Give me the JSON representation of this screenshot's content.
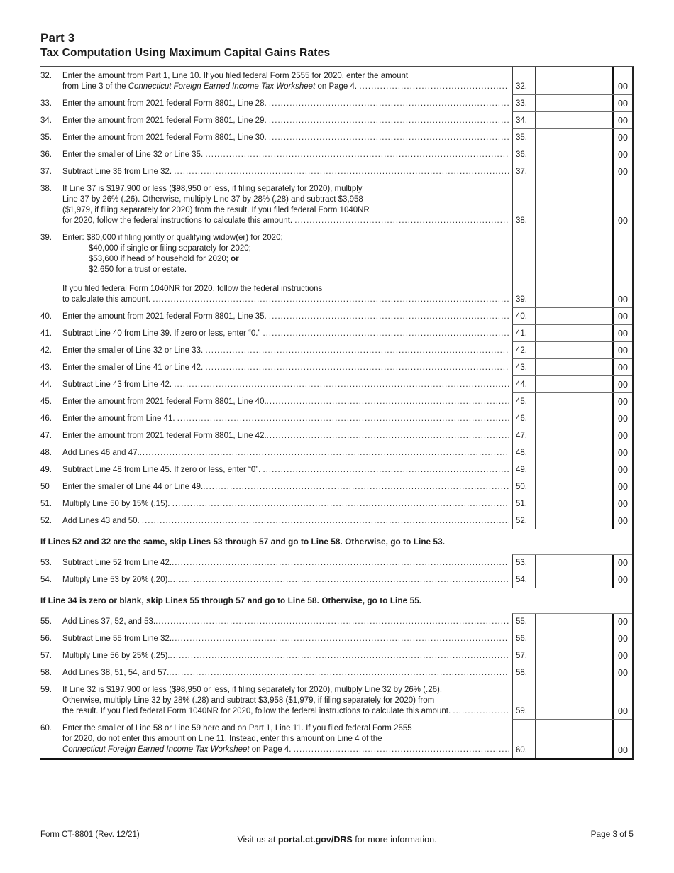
{
  "header": {
    "part_label": "Part 3",
    "title": "Tax Computation Using Maximum Capital Gains Rates"
  },
  "amount_cents_label": "00",
  "body": [
    {
      "kind": "row",
      "num": "32.",
      "box": "32.",
      "lines": [
        {
          "seg": [
            {
              "t": "Enter the amount from Part 1, Line 10. If you filed federal Form 2555 for 2020, enter the amount"
            }
          ]
        },
        {
          "seg": [
            {
              "t": "from Line 3 of the "
            },
            {
              "t": "Connecticut Foreign Earned Income Tax Worksheet",
              "i": true
            },
            {
              "t": " on Page 4. "
            }
          ],
          "dots": true
        }
      ]
    },
    {
      "kind": "row",
      "num": "33.",
      "box": "33.",
      "lines": [
        {
          "seg": [
            {
              "t": "Enter the amount from 2021 federal Form 8801, Line 28. "
            }
          ],
          "dots": true
        }
      ]
    },
    {
      "kind": "row",
      "num": "34.",
      "box": "34.",
      "lines": [
        {
          "seg": [
            {
              "t": "Enter the amount from 2021 federal Form 8801, Line 29. "
            }
          ],
          "dots": true
        }
      ]
    },
    {
      "kind": "row",
      "num": "35.",
      "box": "35.",
      "lines": [
        {
          "seg": [
            {
              "t": "Enter the amount from 2021 federal Form 8801, Line 30. "
            }
          ],
          "dots": true
        }
      ]
    },
    {
      "kind": "row",
      "num": "36.",
      "box": "36.",
      "lines": [
        {
          "seg": [
            {
              "t": "Enter the smaller of Line 32 or Line 35. "
            }
          ],
          "dots": true
        }
      ]
    },
    {
      "kind": "row",
      "num": "37.",
      "box": "37.",
      "lines": [
        {
          "seg": [
            {
              "t": "Subtract Line 36 from Line 32. "
            }
          ],
          "dots": true
        }
      ]
    },
    {
      "kind": "row",
      "num": "38.",
      "box": "38.",
      "lines": [
        {
          "seg": [
            {
              "t": "If Line 37 is $197,900 or less ($98,950 or less, if filing separately for 2020), multiply"
            }
          ]
        },
        {
          "seg": [
            {
              "t": "Line 37 by 26% (.26). Otherwise, multiply Line 37 by 28% (.28) and subtract $3,958"
            }
          ]
        },
        {
          "seg": [
            {
              "t": "($1,979, if filing separately for 2020) from the result. If you filed federal Form 1040NR"
            }
          ]
        },
        {
          "seg": [
            {
              "t": "for 2020, follow the federal instructions to calculate this amount. "
            }
          ],
          "dots": true
        }
      ]
    },
    {
      "kind": "row",
      "num": "39.",
      "box": "39.",
      "lines": [
        {
          "seg": [
            {
              "t": "Enter: $80,000 if filing jointly or qualifying widow(er) for 2020;"
            }
          ]
        },
        {
          "seg": [
            {
              "t": "$40,000 if single or filing separately for 2020;"
            }
          ],
          "ind": 1
        },
        {
          "seg": [
            {
              "t": "$53,600 if head of household for 2020; "
            },
            {
              "t": "or",
              "b": true
            }
          ],
          "ind": 1
        },
        {
          "seg": [
            {
              "t": "$2,650 for a trust or estate."
            }
          ],
          "ind": 1
        },
        {
          "gap": true
        },
        {
          "seg": [
            {
              "t": "If you filed federal Form 1040NR for 2020, follow the federal instructions"
            }
          ]
        },
        {
          "seg": [
            {
              "t": "to calculate this amount. "
            }
          ],
          "dots": true
        }
      ]
    },
    {
      "kind": "row",
      "num": "40.",
      "box": "40.",
      "lines": [
        {
          "seg": [
            {
              "t": "Enter the amount from 2021 federal Form 8801, Line 35. "
            }
          ],
          "dots": true
        }
      ]
    },
    {
      "kind": "row",
      "num": "41.",
      "box": "41.",
      "lines": [
        {
          "seg": [
            {
              "t": "Subtract Line 40 from Line 39. If zero or less, enter “0.” "
            }
          ],
          "dots": true
        }
      ]
    },
    {
      "kind": "row",
      "num": "42.",
      "box": "42.",
      "lines": [
        {
          "seg": [
            {
              "t": "Enter the smaller of Line 32 or Line 33. "
            }
          ],
          "dots": true
        }
      ]
    },
    {
      "kind": "row",
      "num": "43.",
      "box": "43.",
      "lines": [
        {
          "seg": [
            {
              "t": "Enter the smaller of Line 41 or Line 42. "
            }
          ],
          "dots": true
        }
      ]
    },
    {
      "kind": "row",
      "num": "44.",
      "box": "44.",
      "lines": [
        {
          "seg": [
            {
              "t": "Subtract Line 43 from Line 42. "
            }
          ],
          "dots": true
        }
      ]
    },
    {
      "kind": "row",
      "num": "45.",
      "box": "45.",
      "lines": [
        {
          "seg": [
            {
              "t": "Enter the amount from 2021 federal Form 8801, Line 40."
            }
          ],
          "dots": true
        }
      ]
    },
    {
      "kind": "row",
      "num": "46.",
      "box": "46.",
      "lines": [
        {
          "seg": [
            {
              "t": "Enter the amount from Line 41. "
            }
          ],
          "dots": true
        }
      ]
    },
    {
      "kind": "row",
      "num": "47.",
      "box": "47.",
      "lines": [
        {
          "seg": [
            {
              "t": "Enter the amount from 2021 federal Form 8801, Line 42."
            }
          ],
          "dots": true
        }
      ]
    },
    {
      "kind": "row",
      "num": "48.",
      "box": "48.",
      "lines": [
        {
          "seg": [
            {
              "t": "Add Lines 46 and 47."
            }
          ],
          "dots": true
        }
      ]
    },
    {
      "kind": "row",
      "num": "49.",
      "box": "49.",
      "lines": [
        {
          "seg": [
            {
              "t": "Subtract Line 48 from Line 45. If zero or less, enter “0”. "
            }
          ],
          "dots": true
        }
      ]
    },
    {
      "kind": "row",
      "num": "50",
      "box": "50.",
      "lines": [
        {
          "seg": [
            {
              "t": "Enter the smaller of Line 44 or Line 49."
            }
          ],
          "dots": true
        }
      ]
    },
    {
      "kind": "row",
      "num": "51.",
      "box": "51.",
      "lines": [
        {
          "seg": [
            {
              "t": "Multiply Line 50 by 15% (.15). "
            }
          ],
          "dots": true
        }
      ]
    },
    {
      "kind": "row",
      "num": "52.",
      "box": "52.",
      "lines": [
        {
          "seg": [
            {
              "t": "Add Lines 43 and 50. "
            }
          ],
          "dots": true
        }
      ]
    },
    {
      "kind": "note",
      "text": "If Lines 52 and 32 are the same, skip Lines 53 through 57 and go to Line 58.  Otherwise, go to Line 53."
    },
    {
      "kind": "row",
      "num": "53.",
      "box": "53.",
      "boxTop": true,
      "lines": [
        {
          "seg": [
            {
              "t": "Subtract Line 52 from Line 42."
            }
          ],
          "dots": true
        }
      ]
    },
    {
      "kind": "row",
      "num": "54.",
      "box": "54.",
      "lines": [
        {
          "seg": [
            {
              "t": "Multiply Line 53 by 20% (.20)."
            }
          ],
          "dots": true
        }
      ]
    },
    {
      "kind": "note",
      "text": "If Line 34 is zero or blank, skip Lines 55 through 57 and go to Line 58.  Otherwise, go to Line 55."
    },
    {
      "kind": "row",
      "num": "55.",
      "box": "55.",
      "boxTop": true,
      "lines": [
        {
          "seg": [
            {
              "t": "Add Lines 37, 52, and 53."
            }
          ],
          "dots": true
        }
      ]
    },
    {
      "kind": "row",
      "num": "56.",
      "box": "56.",
      "lines": [
        {
          "seg": [
            {
              "t": "Subtract Line 55 from Line 32."
            }
          ],
          "dots": true
        }
      ]
    },
    {
      "kind": "row",
      "num": "57.",
      "box": "57.",
      "lines": [
        {
          "seg": [
            {
              "t": "Multiply Line 56 by 25% (.25)."
            }
          ],
          "dots": true
        }
      ]
    },
    {
      "kind": "row",
      "num": "58.",
      "box": "58.",
      "lines": [
        {
          "seg": [
            {
              "t": "Add Lines 38, 51, 54, and 57."
            }
          ],
          "dots": true
        }
      ]
    },
    {
      "kind": "row",
      "num": "59.",
      "box": "59.",
      "lines": [
        {
          "seg": [
            {
              "t": "If Line 32 is $197,900 or less ($98,950 or less, if filing separately for 2020), multiply Line 32 by 26% (.26)."
            }
          ]
        },
        {
          "seg": [
            {
              "t": "Otherwise, multiply Line 32 by 28% (.28) and subtract $3,958 ($1,979, if filing separately for 2020) from"
            }
          ]
        },
        {
          "seg": [
            {
              "t": "the result. If you filed federal Form 1040NR for 2020, follow the federal instructions to calculate this amount. "
            }
          ],
          "dots": true
        }
      ]
    },
    {
      "kind": "row",
      "num": "60.",
      "box": "60.",
      "lines": [
        {
          "seg": [
            {
              "t": "Enter the smaller of Line 58 or Line 59 here and on Part 1, Line 11. If you filed federal Form 2555"
            }
          ]
        },
        {
          "seg": [
            {
              "t": "for 2020, do not enter this amount on Line 11. Instead, enter this amount on Line 4 of the"
            }
          ]
        },
        {
          "seg": [
            {
              "t": "Connecticut Foreign Earned Income Tax Worksheet",
              "i": true
            },
            {
              "t": " on Page 4. "
            }
          ],
          "dots": true
        }
      ]
    }
  ],
  "footer": {
    "form_id": "Form CT-8801 (Rev. 12/21)",
    "visit_prefix": "Visit us at ",
    "visit_link": "portal.ct.gov/DRS",
    "visit_suffix": " for more information.",
    "page": "Page 3 of 5"
  }
}
